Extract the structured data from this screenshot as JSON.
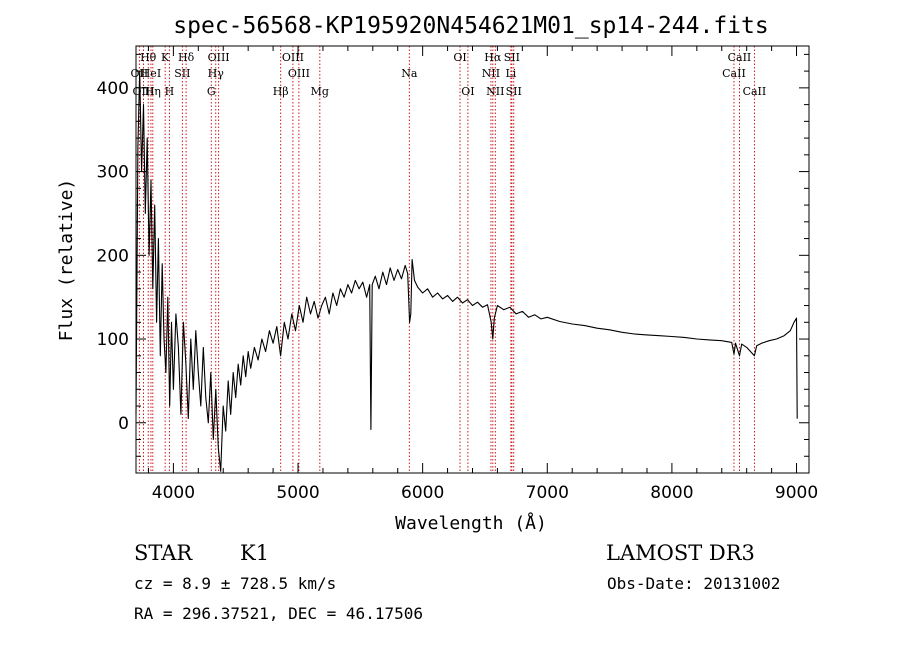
{
  "chart_data": {
    "type": "line",
    "title": "spec-56568-KP195920N454621M01_sp14-244.fits",
    "xlabel": "Wavelength (Å)",
    "ylabel": "Flux (relative)",
    "xlim": [
      3700,
      9100
    ],
    "ylim": [
      -60,
      450
    ],
    "x_ticks": [
      4000,
      5000,
      6000,
      7000,
      8000,
      9000
    ],
    "x_tick_labels": [
      "4000",
      "5000",
      "6000",
      "7000",
      "8000",
      "9000"
    ],
    "y_ticks": [
      0,
      100,
      200,
      300,
      400
    ],
    "y_tick_labels": [
      "0",
      "100",
      "200",
      "300",
      "400"
    ],
    "series": [
      {
        "name": "flux",
        "points": [
          [
            3700,
            10
          ],
          [
            3715,
            330
          ],
          [
            3730,
            420
          ],
          [
            3745,
            300
          ],
          [
            3760,
            380
          ],
          [
            3775,
            250
          ],
          [
            3790,
            340
          ],
          [
            3805,
            200
          ],
          [
            3820,
            290
          ],
          [
            3835,
            160
          ],
          [
            3850,
            260
          ],
          [
            3865,
            120
          ],
          [
            3880,
            220
          ],
          [
            3895,
            80
          ],
          [
            3910,
            190
          ],
          [
            3925,
            100
          ],
          [
            3940,
            60
          ],
          [
            3955,
            150
          ],
          [
            3970,
            20
          ],
          [
            3985,
            120
          ],
          [
            4000,
            40
          ],
          [
            4020,
            130
          ],
          [
            4040,
            90
          ],
          [
            4060,
            10
          ],
          [
            4080,
            120
          ],
          [
            4100,
            70
          ],
          [
            4120,
            5
          ],
          [
            4140,
            100
          ],
          [
            4160,
            40
          ],
          [
            4180,
            110
          ],
          [
            4200,
            60
          ],
          [
            4220,
            20
          ],
          [
            4240,
            90
          ],
          [
            4260,
            30
          ],
          [
            4280,
            0
          ],
          [
            4300,
            60
          ],
          [
            4320,
            -20
          ],
          [
            4340,
            40
          ],
          [
            4360,
            -30
          ],
          [
            4380,
            -58
          ],
          [
            4400,
            20
          ],
          [
            4420,
            -10
          ],
          [
            4440,
            50
          ],
          [
            4460,
            10
          ],
          [
            4480,
            60
          ],
          [
            4500,
            30
          ],
          [
            4520,
            70
          ],
          [
            4540,
            45
          ],
          [
            4560,
            80
          ],
          [
            4580,
            55
          ],
          [
            4600,
            85
          ],
          [
            4620,
            65
          ],
          [
            4650,
            90
          ],
          [
            4680,
            75
          ],
          [
            4710,
            100
          ],
          [
            4740,
            85
          ],
          [
            4770,
            110
          ],
          [
            4800,
            95
          ],
          [
            4830,
            115
          ],
          [
            4860,
            80
          ],
          [
            4890,
            120
          ],
          [
            4920,
            100
          ],
          [
            4950,
            130
          ],
          [
            4980,
            110
          ],
          [
            5010,
            140
          ],
          [
            5040,
            120
          ],
          [
            5070,
            150
          ],
          [
            5100,
            130
          ],
          [
            5130,
            145
          ],
          [
            5160,
            125
          ],
          [
            5190,
            140
          ],
          [
            5220,
            150
          ],
          [
            5250,
            130
          ],
          [
            5280,
            155
          ],
          [
            5310,
            140
          ],
          [
            5340,
            160
          ],
          [
            5370,
            150
          ],
          [
            5400,
            165
          ],
          [
            5430,
            155
          ],
          [
            5460,
            170
          ],
          [
            5490,
            160
          ],
          [
            5520,
            168
          ],
          [
            5550,
            150
          ],
          [
            5575,
            165
          ],
          [
            5585,
            -8
          ],
          [
            5595,
            165
          ],
          [
            5620,
            175
          ],
          [
            5650,
            160
          ],
          [
            5680,
            180
          ],
          [
            5710,
            165
          ],
          [
            5740,
            185
          ],
          [
            5770,
            170
          ],
          [
            5800,
            183
          ],
          [
            5830,
            172
          ],
          [
            5860,
            188
          ],
          [
            5880,
            178
          ],
          [
            5895,
            120
          ],
          [
            5905,
            130
          ],
          [
            5915,
            195
          ],
          [
            5935,
            170
          ],
          [
            5960,
            162
          ],
          [
            6000,
            155
          ],
          [
            6040,
            160
          ],
          [
            6080,
            150
          ],
          [
            6120,
            155
          ],
          [
            6160,
            148
          ],
          [
            6200,
            152
          ],
          [
            6240,
            145
          ],
          [
            6280,
            150
          ],
          [
            6320,
            143
          ],
          [
            6360,
            147
          ],
          [
            6400,
            140
          ],
          [
            6440,
            144
          ],
          [
            6480,
            138
          ],
          [
            6520,
            141
          ],
          [
            6550,
            120
          ],
          [
            6563,
            100
          ],
          [
            6575,
            125
          ],
          [
            6600,
            140
          ],
          [
            6650,
            135
          ],
          [
            6700,
            138
          ],
          [
            6750,
            130
          ],
          [
            6800,
            133
          ],
          [
            6850,
            126
          ],
          [
            6900,
            129
          ],
          [
            6950,
            124
          ],
          [
            7000,
            126
          ],
          [
            7100,
            121
          ],
          [
            7200,
            118
          ],
          [
            7300,
            116
          ],
          [
            7400,
            113
          ],
          [
            7500,
            111
          ],
          [
            7600,
            108
          ],
          [
            7700,
            106
          ],
          [
            7800,
            105
          ],
          [
            7900,
            104
          ],
          [
            8000,
            103
          ],
          [
            8100,
            102
          ],
          [
            8200,
            100
          ],
          [
            8300,
            99
          ],
          [
            8400,
            98
          ],
          [
            8480,
            96
          ],
          [
            8498,
            82
          ],
          [
            8510,
            95
          ],
          [
            8542,
            80
          ],
          [
            8560,
            94
          ],
          [
            8600,
            90
          ],
          [
            8662,
            80
          ],
          [
            8680,
            92
          ],
          [
            8720,
            95
          ],
          [
            8780,
            98
          ],
          [
            8840,
            100
          ],
          [
            8900,
            104
          ],
          [
            8950,
            110
          ],
          [
            8980,
            120
          ],
          [
            9000,
            125
          ],
          [
            9005,
            5
          ]
        ]
      }
    ],
    "spectral_lines": [
      {
        "label": "Hθ",
        "wavelength": 3798,
        "row": 1
      },
      {
        "label": "OII",
        "wavelength": 3727,
        "row": 2
      },
      {
        "label": "OIII",
        "wavelength": 3760,
        "row": 3
      },
      {
        "label": "HeI",
        "wavelength": 3820,
        "row": 2
      },
      {
        "label": "K",
        "wavelength": 3934,
        "row": 1
      },
      {
        "label": "Hη",
        "wavelength": 3835,
        "row": 3
      },
      {
        "label": "SII",
        "wavelength": 4072,
        "row": 2
      },
      {
        "label": "H",
        "wavelength": 3968,
        "row": 3
      },
      {
        "label": "Hδ",
        "wavelength": 4102,
        "row": 1
      },
      {
        "label": "OIII",
        "wavelength": 4363,
        "row": 1
      },
      {
        "label": "Hγ",
        "wavelength": 4340,
        "row": 2
      },
      {
        "label": "G",
        "wavelength": 4304,
        "row": 3
      },
      {
        "label": "OIII",
        "wavelength": 4959,
        "row": 1
      },
      {
        "label": "OIII",
        "wavelength": 5007,
        "row": 2
      },
      {
        "label": "Hβ",
        "wavelength": 4861,
        "row": 3
      },
      {
        "label": "Mg",
        "wavelength": 5175,
        "row": 3
      },
      {
        "label": "Na",
        "wavelength": 5893,
        "row": 2
      },
      {
        "label": "OI",
        "wavelength": 6300,
        "row": 1
      },
      {
        "label": "OI",
        "wavelength": 6363,
        "row": 3
      },
      {
        "label": "Hα",
        "wavelength": 6563,
        "row": 1
      },
      {
        "label": "NII",
        "wavelength": 6548,
        "row": 2
      },
      {
        "label": "NII",
        "wavelength": 6583,
        "row": 3
      },
      {
        "label": "SII",
        "wavelength": 6716,
        "row": 1
      },
      {
        "label": "Li",
        "wavelength": 6708,
        "row": 2
      },
      {
        "label": "SII",
        "wavelength": 6731,
        "row": 3
      },
      {
        "label": "CaII",
        "wavelength": 8542,
        "row": 1
      },
      {
        "label": "CaII",
        "wavelength": 8498,
        "row": 2
      },
      {
        "label": "CaII",
        "wavelength": 8662,
        "row": 3
      }
    ],
    "line_color": "#000000",
    "marker_color": "#cc0000"
  },
  "info": {
    "object_class": "STAR",
    "subclass": "K1",
    "survey": "LAMOST DR3",
    "redshift_text": "cz = 8.9 ± 728.5 km/s",
    "obs_date_text": "Obs-Date: 20131002",
    "coords_text": "RA = 296.37521, DEC =  46.17506"
  }
}
